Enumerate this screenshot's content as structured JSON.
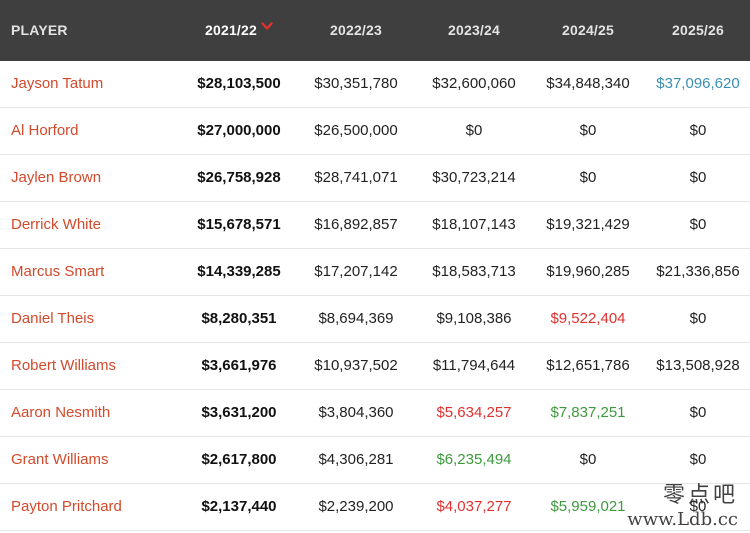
{
  "header": {
    "player": "PLAYER",
    "seasons": [
      "2021/22",
      "2022/23",
      "2023/24",
      "2024/25",
      "2025/26"
    ],
    "sorted_index": 0,
    "sort_icon": "chevron-down-icon"
  },
  "colors": {
    "header_bg": "#3f3f3f",
    "player_link": "#d24a2b",
    "player_option": "#e0312f",
    "team_option": "#3e9a3e",
    "qualifying_offer": "#3b8fb3",
    "default": "#222222",
    "sort_icon": "#e0312f"
  },
  "rows": [
    {
      "player": "Jayson Tatum",
      "values": [
        "$28,103,500",
        "$30,351,780",
        "$32,600,060",
        "$34,848,340",
        "$37,096,620"
      ],
      "status": [
        "",
        "",
        "",
        "",
        "qualifying_offer"
      ]
    },
    {
      "player": "Al Horford",
      "values": [
        "$27,000,000",
        "$26,500,000",
        "$0",
        "$0",
        "$0"
      ],
      "status": [
        "",
        "",
        "",
        "",
        ""
      ]
    },
    {
      "player": "Jaylen Brown",
      "values": [
        "$26,758,928",
        "$28,741,071",
        "$30,723,214",
        "$0",
        "$0"
      ],
      "status": [
        "",
        "",
        "",
        "",
        ""
      ]
    },
    {
      "player": "Derrick White",
      "values": [
        "$15,678,571",
        "$16,892,857",
        "$18,107,143",
        "$19,321,429",
        "$0"
      ],
      "status": [
        "",
        "",
        "",
        "",
        ""
      ]
    },
    {
      "player": "Marcus Smart",
      "values": [
        "$14,339,285",
        "$17,207,142",
        "$18,583,713",
        "$19,960,285",
        "$21,336,856"
      ],
      "status": [
        "",
        "",
        "",
        "",
        ""
      ]
    },
    {
      "player": "Daniel Theis",
      "values": [
        "$8,280,351",
        "$8,694,369",
        "$9,108,386",
        "$9,522,404",
        "$0"
      ],
      "status": [
        "",
        "",
        "",
        "player_option",
        ""
      ]
    },
    {
      "player": "Robert Williams",
      "values": [
        "$3,661,976",
        "$10,937,502",
        "$11,794,644",
        "$12,651,786",
        "$13,508,928"
      ],
      "status": [
        "",
        "",
        "",
        "",
        ""
      ]
    },
    {
      "player": "Aaron Nesmith",
      "values": [
        "$3,631,200",
        "$3,804,360",
        "$5,634,257",
        "$7,837,251",
        "$0"
      ],
      "status": [
        "",
        "",
        "player_option",
        "team_option",
        ""
      ]
    },
    {
      "player": "Grant Williams",
      "values": [
        "$2,617,800",
        "$4,306,281",
        "$6,235,494",
        "$0",
        "$0"
      ],
      "status": [
        "",
        "",
        "team_option",
        "",
        ""
      ]
    },
    {
      "player": "Payton Pritchard",
      "values": [
        "$2,137,440",
        "$2,239,200",
        "$4,037,277",
        "$5,959,021",
        "$0"
      ],
      "status": [
        "",
        "",
        "player_option",
        "team_option",
        ""
      ]
    }
  ],
  "watermark": {
    "line1": "零点吧",
    "line2": "www.Ldb.cc"
  }
}
